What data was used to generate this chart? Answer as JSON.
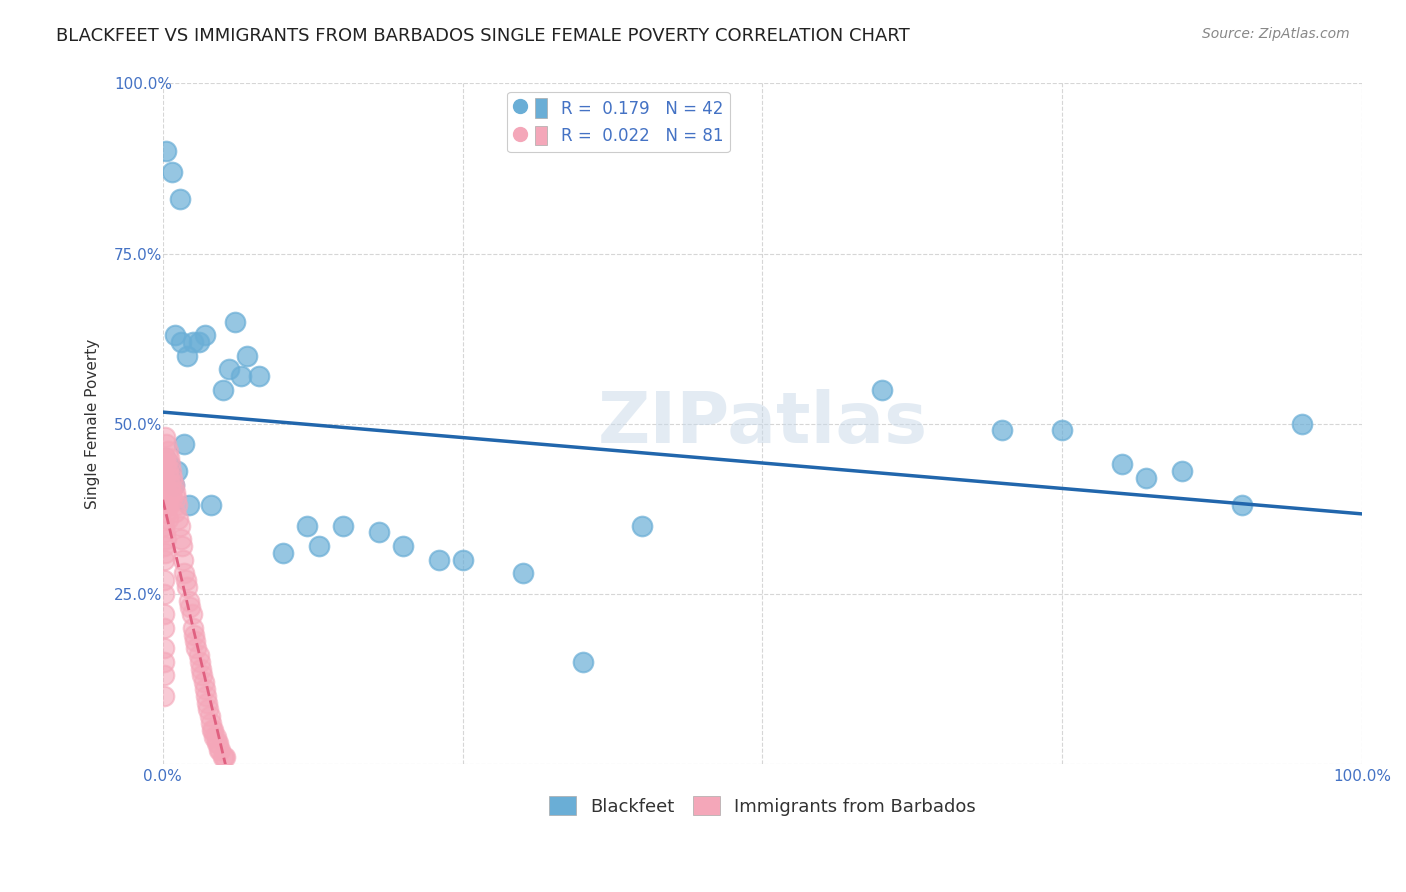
{
  "title": "BLACKFEET VS IMMIGRANTS FROM BARBADOS SINGLE FEMALE POVERTY CORRELATION CHART",
  "source": "Source: ZipAtlas.com",
  "xlabel_bottom": "",
  "ylabel": "Single Female Poverty",
  "x_tick_labels": [
    "0.0%",
    "100.0%"
  ],
  "y_tick_labels": [
    "100.0%",
    "75.0%",
    "50.0%",
    "25.0%"
  ],
  "watermark": "ZIPatlas",
  "legend_blue_label": "Blackfeet",
  "legend_pink_label": "Immigrants from Barbados",
  "legend_blue_R": "R =  0.179",
  "legend_blue_N": "N = 42",
  "legend_pink_R": "R =  0.022",
  "legend_pink_N": "N = 81",
  "blue_color": "#6aaed6",
  "pink_color": "#f4a7b9",
  "blue_line_color": "#2166ac",
  "pink_line_color": "#f4a7b9",
  "background_color": "#ffffff",
  "grid_color": "#cccccc",
  "blue_scatter_x": [
    0.005,
    0.012,
    0.018,
    0.022,
    0.003,
    0.008,
    0.014,
    0.02,
    0.025,
    0.01,
    0.015,
    0.03,
    0.05,
    0.06,
    0.07,
    0.08,
    0.1,
    0.12,
    0.15,
    0.2,
    0.25,
    0.3,
    0.35,
    0.4,
    0.6,
    0.7,
    0.8,
    0.85,
    0.9,
    0.95,
    0.002,
    0.006,
    0.009,
    0.04,
    0.035,
    0.055,
    0.065,
    0.13,
    0.18,
    0.23,
    0.75,
    0.82
  ],
  "blue_scatter_y": [
    0.44,
    0.43,
    0.47,
    0.38,
    0.9,
    0.87,
    0.83,
    0.6,
    0.62,
    0.63,
    0.62,
    0.62,
    0.55,
    0.65,
    0.6,
    0.57,
    0.31,
    0.35,
    0.35,
    0.32,
    0.3,
    0.28,
    0.15,
    0.35,
    0.55,
    0.49,
    0.44,
    0.43,
    0.38,
    0.5,
    0.45,
    0.43,
    0.41,
    0.38,
    0.63,
    0.58,
    0.57,
    0.32,
    0.34,
    0.3,
    0.49,
    0.42
  ],
  "pink_scatter_x": [
    0.001,
    0.001,
    0.001,
    0.001,
    0.001,
    0.001,
    0.001,
    0.001,
    0.001,
    0.001,
    0.001,
    0.001,
    0.001,
    0.001,
    0.001,
    0.002,
    0.002,
    0.002,
    0.002,
    0.002,
    0.002,
    0.003,
    0.003,
    0.003,
    0.003,
    0.003,
    0.004,
    0.004,
    0.004,
    0.004,
    0.005,
    0.005,
    0.005,
    0.006,
    0.006,
    0.007,
    0.007,
    0.008,
    0.008,
    0.009,
    0.01,
    0.01,
    0.011,
    0.012,
    0.013,
    0.014,
    0.015,
    0.016,
    0.017,
    0.018,
    0.019,
    0.02,
    0.022,
    0.023,
    0.024,
    0.025,
    0.026,
    0.027,
    0.028,
    0.03,
    0.031,
    0.032,
    0.033,
    0.034,
    0.035,
    0.036,
    0.037,
    0.038,
    0.039,
    0.04,
    0.041,
    0.042,
    0.043,
    0.044,
    0.045,
    0.046,
    0.047,
    0.048,
    0.05,
    0.051,
    0.052
  ],
  "pink_scatter_y": [
    0.45,
    0.4,
    0.42,
    0.38,
    0.35,
    0.32,
    0.3,
    0.27,
    0.25,
    0.22,
    0.2,
    0.17,
    0.15,
    0.13,
    0.1,
    0.48,
    0.45,
    0.41,
    0.38,
    0.34,
    0.31,
    0.47,
    0.44,
    0.4,
    0.37,
    0.33,
    0.46,
    0.43,
    0.39,
    0.36,
    0.45,
    0.42,
    0.38,
    0.44,
    0.41,
    0.43,
    0.4,
    0.42,
    0.39,
    0.41,
    0.4,
    0.37,
    0.39,
    0.38,
    0.36,
    0.35,
    0.33,
    0.32,
    0.3,
    0.28,
    0.27,
    0.26,
    0.24,
    0.23,
    0.22,
    0.2,
    0.19,
    0.18,
    0.17,
    0.16,
    0.15,
    0.14,
    0.13,
    0.12,
    0.11,
    0.1,
    0.09,
    0.08,
    0.07,
    0.06,
    0.05,
    0.05,
    0.04,
    0.04,
    0.03,
    0.03,
    0.02,
    0.02,
    0.01,
    0.01,
    0.01
  ],
  "xlim": [
    0.0,
    1.0
  ],
  "ylim": [
    0.0,
    1.0
  ],
  "title_fontsize": 13,
  "axis_label_fontsize": 11,
  "tick_fontsize": 11,
  "legend_fontsize": 12,
  "source_fontsize": 10
}
